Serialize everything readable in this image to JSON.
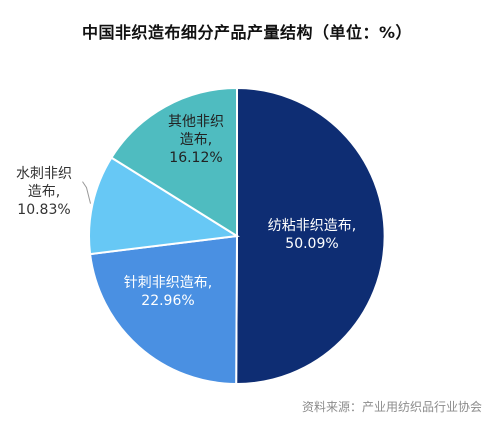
{
  "chart_data": {
    "type": "pie",
    "title": "中国非织造布细分产品产量结构（单位：%）",
    "slices": [
      {
        "label": "纺粘非织造布",
        "value": 50.09,
        "display": "50.09%",
        "color": "#0e2d73",
        "text_color": "#ffffff"
      },
      {
        "label": "针刺非织造布",
        "value": 22.96,
        "display": "22.96%",
        "color": "#4a90e2",
        "text_color": "#ffffff"
      },
      {
        "label": "水刺非织造布",
        "value": 10.83,
        "display": "10.83%",
        "color": "#67c8f5",
        "text_color": "#333333"
      },
      {
        "label": "其他非织造布",
        "value": 16.12,
        "display": "16.12%",
        "color": "#4fbcc0",
        "text_color": "#222222"
      }
    ],
    "start_angle": "12 o'clock",
    "direction": "clockwise",
    "legend": "none"
  },
  "footer": {
    "source": "资料来源：产业用纺织品行业协会"
  }
}
